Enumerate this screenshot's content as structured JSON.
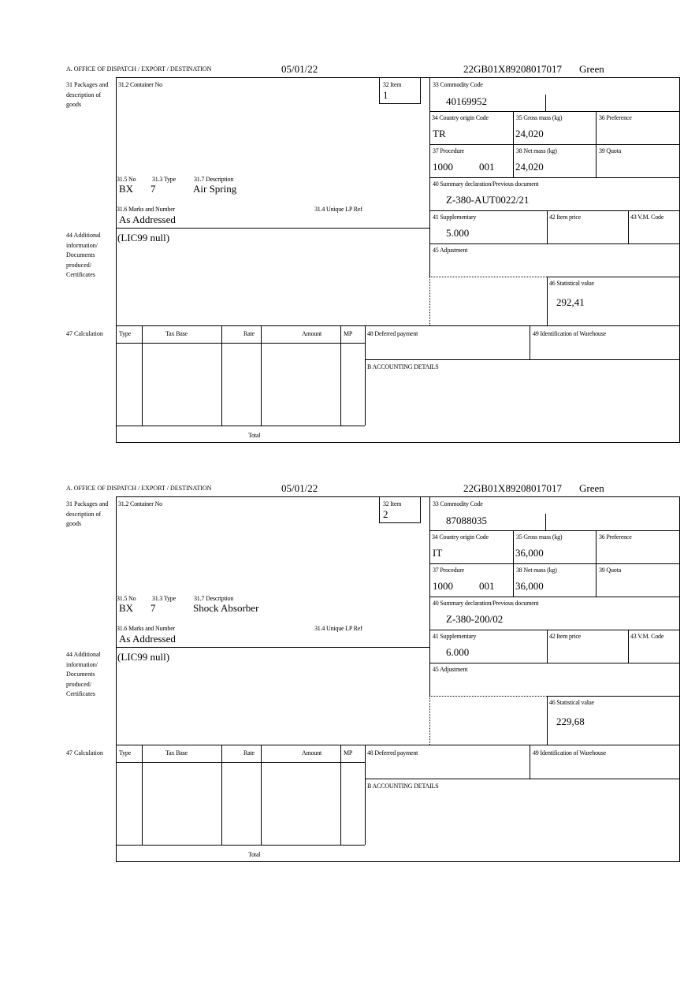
{
  "header_label": "A. OFFICE OF DISPATCH / EXPORT / DESTINATION",
  "labels": {
    "packages": "31 Packages and description of goods",
    "container": "31.2 Container No",
    "item": "32 Item",
    "no": "31.5 No",
    "type": "31.3 Type",
    "description": "31.7 Description",
    "marks": "31.6 Marks and Number",
    "unique_ref": "31.4 Unique LP Ref",
    "additional": "44 Additional information/ Documents produced/ Certificates",
    "commodity": "33 Commodity Code",
    "country": "34 Country origin Code",
    "gross": "35 Gross mass (kg)",
    "preference": "36 Preference",
    "procedure": "37 Procedure",
    "net": "38 Net mass (kg)",
    "quota": "39 Quota",
    "summary": "40 Summary declaration/Previous document",
    "supplementary": "41 Supplementary",
    "item_price": "42 Item price",
    "vm_code": "43 V.M. Code",
    "adjustment": "45 Adjustment",
    "statistical": "46 Statistical value",
    "calculation": "47 Calculation",
    "col_type": "Type",
    "col_tax_base": "Tax Base",
    "col_rate": "Rate",
    "col_amount": "Amount",
    "col_mp": "MP",
    "total": "Total",
    "deferred": "48 Deferred payment",
    "warehouse": "49 Identification of Warehouse",
    "accounting": "B ACCOUNTING DETAILS"
  },
  "items": [
    {
      "date": "05/01/22",
      "reference": "22GB01X89208017017",
      "route": "Green",
      "item_no": "1",
      "no": "BX",
      "type": "7",
      "description": "Air Spring",
      "marks": "As Addressed",
      "additional": "(LIC99 null)",
      "commodity": "40169952",
      "country": "TR",
      "gross": "24,020",
      "procedure": "1000",
      "procedure_extra": "001",
      "net": "24,020",
      "summary": "Z-380-AUT0022/21",
      "supplementary": "5.000",
      "statistical": "292,41"
    },
    {
      "date": "05/01/22",
      "reference": "22GB01X89208017017",
      "route": "Green",
      "item_no": "2",
      "no": "BX",
      "type": "7",
      "description": "Shock Absorber",
      "marks": "As Addressed",
      "additional": "(LIC99 null)",
      "commodity": "87088035",
      "country": "IT",
      "gross": "36,000",
      "procedure": "1000",
      "procedure_extra": "001",
      "net": "36,000",
      "summary": "Z-380-200/02",
      "supplementary": "6.000",
      "statistical": "229,68"
    }
  ]
}
